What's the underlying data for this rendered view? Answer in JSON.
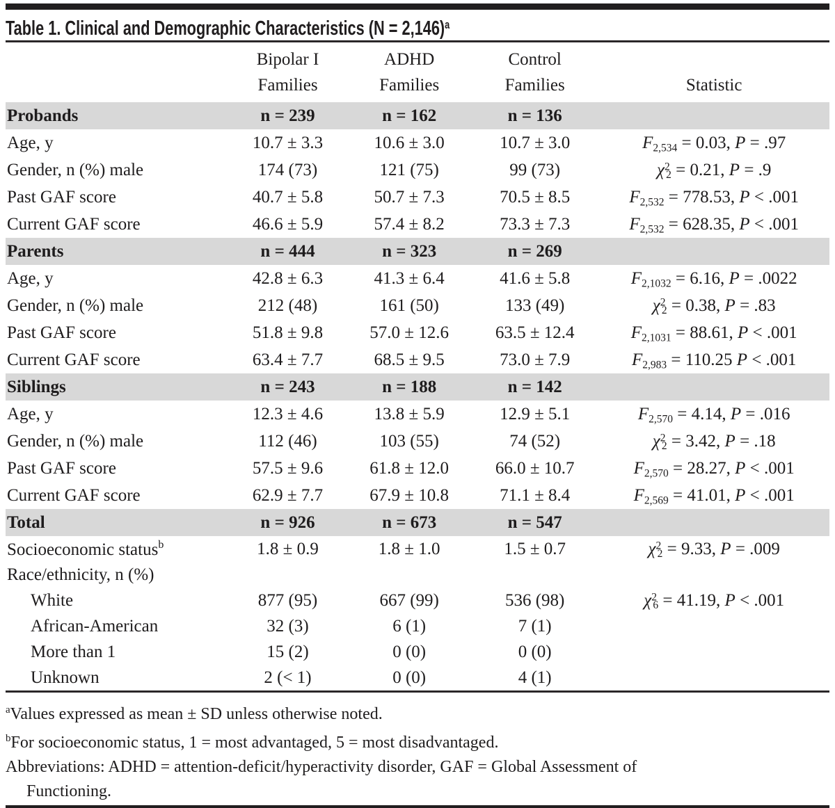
{
  "colors": {
    "band_bg": "#d8d8d8",
    "rule": "#2a2728",
    "bar": "#211e1f",
    "text": "#1e1c1d",
    "page_bg": "#ffffff"
  },
  "title": {
    "text": "Table 1. Clinical and Demographic Characteristics (N = 2,146)",
    "superscript": "a"
  },
  "header": {
    "groups": [
      {
        "line1": "Bipolar I",
        "line2": "Families"
      },
      {
        "line1": "ADHD",
        "line2": "Families"
      },
      {
        "line1": "Control",
        "line2": "Families"
      }
    ],
    "statistic": "Statistic"
  },
  "sections": [
    {
      "name": "Probands",
      "counts": [
        "n = 239",
        "n = 162",
        "n = 136"
      ],
      "rows": [
        {
          "label": "Age, y",
          "label_sup": "",
          "indent": false,
          "values": [
            "10.7 ± 3.3",
            "10.6 ± 3.0",
            "10.7 ± 3.0"
          ],
          "stat": [
            {
              "s": "i",
              "v": "F"
            },
            {
              "s": "sub",
              "v": "2,534"
            },
            {
              "s": "t",
              "v": " = 0.03, "
            },
            {
              "s": "i",
              "v": "P"
            },
            {
              "s": "t",
              "v": " = .97"
            }
          ]
        },
        {
          "label": "Gender, n (%) male",
          "label_sup": "",
          "indent": false,
          "values": [
            "174 (73)",
            "121 (75)",
            "99 (73)"
          ],
          "stat": [
            {
              "s": "i",
              "v": "χ"
            },
            {
              "s": "sup",
              "v": "2"
            },
            {
              "s": "sub",
              "v": "2"
            },
            {
              "s": "t",
              "v": " = 0.21, "
            },
            {
              "s": "i",
              "v": "P"
            },
            {
              "s": "t",
              "v": " = .9"
            }
          ]
        },
        {
          "label": "Past GAF score",
          "label_sup": "",
          "indent": false,
          "values": [
            "40.7 ± 5.8",
            "50.7 ± 7.3",
            "70.5 ± 8.5"
          ],
          "stat": [
            {
              "s": "i",
              "v": "F"
            },
            {
              "s": "sub",
              "v": "2,532"
            },
            {
              "s": "t",
              "v": " = 778.53, "
            },
            {
              "s": "i",
              "v": "P"
            },
            {
              "s": "t",
              "v": " < .001"
            }
          ]
        },
        {
          "label": "Current GAF score",
          "label_sup": "",
          "indent": false,
          "values": [
            "46.6 ± 5.9",
            "57.4 ± 8.2",
            "73.3 ± 7.3"
          ],
          "stat": [
            {
              "s": "i",
              "v": "F"
            },
            {
              "s": "sub",
              "v": "2,532"
            },
            {
              "s": "t",
              "v": " = 628.35, "
            },
            {
              "s": "i",
              "v": "P"
            },
            {
              "s": "t",
              "v": " < .001"
            }
          ]
        }
      ]
    },
    {
      "name": "Parents",
      "counts": [
        "n = 444",
        "n = 323",
        "n = 269"
      ],
      "rows": [
        {
          "label": "Age, y",
          "label_sup": "",
          "indent": false,
          "values": [
            "42.8 ± 6.3",
            "41.3 ± 6.4",
            "41.6 ± 5.8"
          ],
          "stat": [
            {
              "s": "i",
              "v": "F"
            },
            {
              "s": "sub",
              "v": "2,1032"
            },
            {
              "s": "t",
              "v": " = 6.16, "
            },
            {
              "s": "i",
              "v": "P"
            },
            {
              "s": "t",
              "v": " = .0022"
            }
          ]
        },
        {
          "label": "Gender, n (%) male",
          "label_sup": "",
          "indent": false,
          "values": [
            "212 (48)",
            "161 (50)",
            "133 (49)"
          ],
          "stat": [
            {
              "s": "i",
              "v": "χ"
            },
            {
              "s": "sup",
              "v": "2"
            },
            {
              "s": "sub",
              "v": "2"
            },
            {
              "s": "t",
              "v": " = 0.38, "
            },
            {
              "s": "i",
              "v": "P"
            },
            {
              "s": "t",
              "v": " = .83"
            }
          ]
        },
        {
          "label": "Past GAF score",
          "label_sup": "",
          "indent": false,
          "values": [
            "51.8 ± 9.8",
            "57.0 ± 12.6",
            "63.5 ± 12.4"
          ],
          "stat": [
            {
              "s": "i",
              "v": "F"
            },
            {
              "s": "sub",
              "v": "2,1031"
            },
            {
              "s": "t",
              "v": " = 88.61, "
            },
            {
              "s": "i",
              "v": "P"
            },
            {
              "s": "t",
              "v": " < .001"
            }
          ]
        },
        {
          "label": "Current GAF score",
          "label_sup": "",
          "indent": false,
          "values": [
            "63.4 ± 7.7",
            "68.5 ± 9.5",
            "73.0 ± 7.9"
          ],
          "stat": [
            {
              "s": "i",
              "v": "F"
            },
            {
              "s": "sub",
              "v": "2,983"
            },
            {
              "s": "t",
              "v": " = 110.25 "
            },
            {
              "s": "i",
              "v": "P"
            },
            {
              "s": "t",
              "v": " < .001"
            }
          ]
        }
      ]
    },
    {
      "name": "Siblings",
      "counts": [
        "n = 243",
        "n = 188",
        "n = 142"
      ],
      "rows": [
        {
          "label": "Age, y",
          "label_sup": "",
          "indent": false,
          "values": [
            "12.3 ± 4.6",
            "13.8 ± 5.9",
            "12.9 ± 5.1"
          ],
          "stat": [
            {
              "s": "i",
              "v": "F"
            },
            {
              "s": "sub",
              "v": "2,570"
            },
            {
              "s": "t",
              "v": " = 4.14, "
            },
            {
              "s": "i",
              "v": "P"
            },
            {
              "s": "t",
              "v": " = .016"
            }
          ]
        },
        {
          "label": "Gender, n (%) male",
          "label_sup": "",
          "indent": false,
          "values": [
            "112 (46)",
            "103 (55)",
            "74 (52)"
          ],
          "stat": [
            {
              "s": "i",
              "v": "χ"
            },
            {
              "s": "sup",
              "v": "2"
            },
            {
              "s": "sub",
              "v": "2"
            },
            {
              "s": "t",
              "v": " = 3.42, "
            },
            {
              "s": "i",
              "v": "P"
            },
            {
              "s": "t",
              "v": " = .18"
            }
          ]
        },
        {
          "label": "Past GAF score",
          "label_sup": "",
          "indent": false,
          "values": [
            "57.5 ± 9.6",
            "61.8 ± 12.0",
            "66.0 ± 10.7"
          ],
          "stat": [
            {
              "s": "i",
              "v": "F"
            },
            {
              "s": "sub",
              "v": "2,570"
            },
            {
              "s": "t",
              "v": " = 28.27, "
            },
            {
              "s": "i",
              "v": "P"
            },
            {
              "s": "t",
              "v": " < .001"
            }
          ]
        },
        {
          "label": "Current GAF score",
          "label_sup": "",
          "indent": false,
          "values": [
            "62.9 ± 7.7",
            "67.9 ± 10.8",
            "71.1 ± 8.4"
          ],
          "stat": [
            {
              "s": "i",
              "v": "F"
            },
            {
              "s": "sub",
              "v": "2,569"
            },
            {
              "s": "t",
              "v": " = 41.01, "
            },
            {
              "s": "i",
              "v": "P"
            },
            {
              "s": "t",
              "v": " < .001"
            }
          ]
        }
      ]
    },
    {
      "name": "Total",
      "counts": [
        "n = 926",
        "n = 673",
        "n = 547"
      ],
      "rows": [
        {
          "label": "Socioeconomic status",
          "label_sup": "b",
          "indent": false,
          "values": [
            "1.8 ± 0.9",
            "1.8 ± 1.0",
            "1.5 ± 0.7"
          ],
          "stat": [
            {
              "s": "i",
              "v": "χ"
            },
            {
              "s": "sup",
              "v": "2"
            },
            {
              "s": "sub",
              "v": "2"
            },
            {
              "s": "t",
              "v": " = 9.33, "
            },
            {
              "s": "i",
              "v": "P"
            },
            {
              "s": "t",
              "v": " = .009"
            }
          ]
        },
        {
          "label": "Race/ethnicity, n (%)",
          "label_sup": "",
          "indent": false,
          "values": [
            "",
            "",
            ""
          ],
          "stat": []
        },
        {
          "label": "White",
          "label_sup": "",
          "indent": true,
          "values": [
            "877 (95)",
            "667 (99)",
            "536 (98)"
          ],
          "stat": [
            {
              "s": "i",
              "v": "χ"
            },
            {
              "s": "sup",
              "v": "2"
            },
            {
              "s": "sub",
              "v": "6"
            },
            {
              "s": "t",
              "v": " = 41.19, "
            },
            {
              "s": "i",
              "v": "P"
            },
            {
              "s": "t",
              "v": " < .001"
            }
          ]
        },
        {
          "label": "African-American",
          "label_sup": "",
          "indent": true,
          "values": [
            "32 (3)",
            "6 (1)",
            "7 (1)"
          ],
          "stat": []
        },
        {
          "label": "More than 1",
          "label_sup": "",
          "indent": true,
          "values": [
            "15 (2)",
            "0 (0)",
            "0 (0)"
          ],
          "stat": []
        },
        {
          "label": "Unknown",
          "label_sup": "",
          "indent": true,
          "values": [
            "2 (< 1)",
            "0 (0)",
            "4 (1)"
          ],
          "stat": []
        }
      ]
    }
  ],
  "footnotes": [
    {
      "marker": "a",
      "lines": [
        "Values expressed as mean ± SD unless otherwise noted."
      ]
    },
    {
      "marker": "b",
      "lines": [
        "For socioeconomic status, 1 = most advantaged, 5 = most disadvantaged."
      ]
    },
    {
      "marker": "",
      "lines": [
        "Abbreviations: ADHD = attention-deficit/hyperactivity disorder, GAF = Global Assessment of",
        "Functioning."
      ]
    }
  ]
}
